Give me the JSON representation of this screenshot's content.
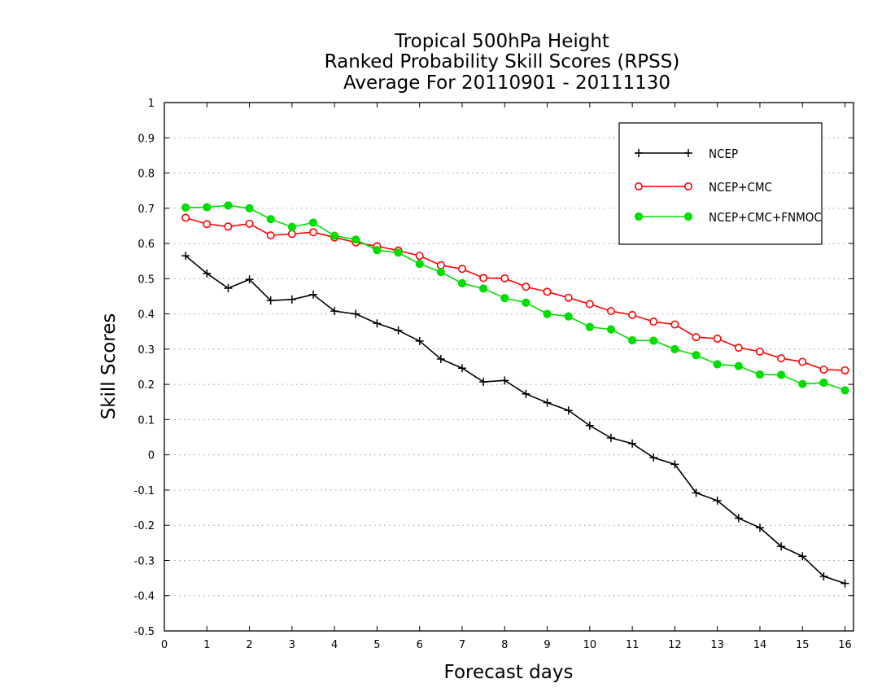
{
  "chart_data": {
    "type": "line",
    "title_lines": [
      "Tropical 500hPa Height",
      "Ranked Probability Skill Scores (RPSS)",
      "Average For 20110901 - 20111130"
    ],
    "xlabel": "Forecast days",
    "ylabel": "Skill Scores",
    "xlim": [
      0,
      16.2
    ],
    "ylim": [
      -0.5,
      1
    ],
    "xticks": [
      0,
      1,
      2,
      3,
      4,
      5,
      6,
      7,
      8,
      9,
      10,
      11,
      12,
      13,
      14,
      15,
      16
    ],
    "yticks": [
      -0.5,
      -0.4,
      -0.3,
      -0.2,
      -0.1,
      0,
      0.1,
      0.2,
      0.3,
      0.4,
      0.5,
      0.6,
      0.7,
      0.8,
      0.9,
      1
    ],
    "ytick_labels": [
      "-0.5",
      "-0.4",
      "-0.3",
      "-0.2",
      "-0.1",
      "0",
      "0.1",
      "0.2",
      "0.3",
      "0.4",
      "0.5",
      "0.6",
      "0.7",
      "0.8",
      "0.9",
      "1"
    ],
    "grid": "horizontal dotted",
    "legend_position": "top-right",
    "x": [
      0.5,
      1,
      1.5,
      2,
      2.5,
      3,
      3.5,
      4,
      4.5,
      5,
      5.5,
      6,
      6.5,
      7,
      7.5,
      8,
      8.5,
      9,
      9.5,
      10,
      10.5,
      11,
      11.5,
      12,
      12.5,
      13,
      13.5,
      14,
      14.5,
      15,
      15.5,
      16
    ],
    "series": [
      {
        "name": "NCEP",
        "color": "#000000",
        "marker": "plus",
        "values": [
          0.565,
          0.515,
          0.473,
          0.498,
          0.438,
          0.441,
          0.455,
          0.408,
          0.4,
          0.373,
          0.353,
          0.323,
          0.272,
          0.246,
          0.207,
          0.211,
          0.173,
          0.148,
          0.126,
          0.083,
          0.048,
          0.032,
          -0.008,
          -0.027,
          -0.108,
          -0.13,
          -0.18,
          -0.207,
          -0.26,
          -0.288,
          -0.345,
          -0.365
        ]
      },
      {
        "name": "NCEP+CMC",
        "color": "#ff0000",
        "marker": "open-circle",
        "values": [
          0.673,
          0.655,
          0.648,
          0.656,
          0.623,
          0.627,
          0.632,
          0.617,
          0.603,
          0.592,
          0.58,
          0.565,
          0.538,
          0.528,
          0.502,
          0.501,
          0.477,
          0.463,
          0.446,
          0.428,
          0.408,
          0.397,
          0.378,
          0.37,
          0.334,
          0.33,
          0.304,
          0.293,
          0.274,
          0.264,
          0.242,
          0.24
        ]
      },
      {
        "name": "NCEP+CMC+FNMOC",
        "color": "#00dd00",
        "marker": "filled-circle",
        "values": [
          0.702,
          0.703,
          0.708,
          0.7,
          0.669,
          0.647,
          0.659,
          0.622,
          0.611,
          0.581,
          0.574,
          0.542,
          0.519,
          0.487,
          0.472,
          0.445,
          0.432,
          0.4,
          0.393,
          0.363,
          0.356,
          0.325,
          0.324,
          0.3,
          0.283,
          0.257,
          0.252,
          0.228,
          0.227,
          0.201,
          0.205,
          0.183
        ]
      }
    ]
  }
}
